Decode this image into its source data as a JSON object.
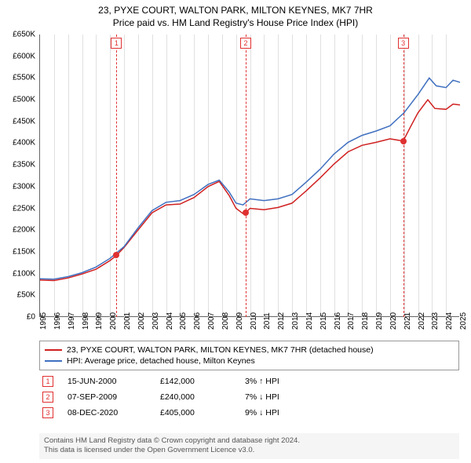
{
  "title": {
    "line1": "23, PYXE COURT, WALTON PARK, MILTON KEYNES, MK7 7HR",
    "line2": "Price paid vs. HM Land Registry's House Price Index (HPI)"
  },
  "chart": {
    "type": "line",
    "background_color": "#ffffff",
    "grid_color": "#e0e0e0",
    "axis_color": "#666666",
    "ylim": [
      0,
      650000
    ],
    "ytick_step": 50000,
    "ytick_prefix": "£",
    "ytick_suffix": "K",
    "xlim": [
      1995,
      2025
    ],
    "xtick_step": 1,
    "tick_fontsize": 10,
    "series": [
      {
        "name": "property",
        "color": "#d02020",
        "line_width": 1.5,
        "label": "23, PYXE COURT, WALTON PARK, MILTON KEYNES, MK7 7HR (detached house)",
        "points": [
          [
            1995.0,
            85000
          ],
          [
            1996.0,
            84000
          ],
          [
            1997.0,
            90000
          ],
          [
            1998.0,
            99000
          ],
          [
            1999.0,
            110000
          ],
          [
            2000.0,
            130000
          ],
          [
            2000.46,
            142000
          ],
          [
            2001.0,
            160000
          ],
          [
            2002.0,
            200000
          ],
          [
            2003.0,
            240000
          ],
          [
            2004.0,
            258000
          ],
          [
            2005.0,
            260000
          ],
          [
            2006.0,
            275000
          ],
          [
            2007.0,
            300000
          ],
          [
            2007.8,
            312000
          ],
          [
            2008.5,
            280000
          ],
          [
            2009.0,
            250000
          ],
          [
            2009.5,
            238000
          ],
          [
            2009.69,
            240000
          ],
          [
            2010.0,
            250000
          ],
          [
            2011.0,
            247000
          ],
          [
            2012.0,
            252000
          ],
          [
            2013.0,
            262000
          ],
          [
            2014.0,
            290000
          ],
          [
            2015.0,
            320000
          ],
          [
            2016.0,
            352000
          ],
          [
            2017.0,
            380000
          ],
          [
            2018.0,
            395000
          ],
          [
            2019.0,
            402000
          ],
          [
            2020.0,
            410000
          ],
          [
            2020.94,
            405000
          ],
          [
            2021.5,
            440000
          ],
          [
            2022.0,
            470000
          ],
          [
            2022.7,
            500000
          ],
          [
            2023.2,
            480000
          ],
          [
            2024.0,
            478000
          ],
          [
            2024.5,
            490000
          ],
          [
            2025.0,
            488000
          ]
        ]
      },
      {
        "name": "hpi",
        "color": "#4070c0",
        "line_width": 1.5,
        "label": "HPI: Average price, detached house, Milton Keynes",
        "points": [
          [
            1995.0,
            88000
          ],
          [
            1996.0,
            87000
          ],
          [
            1997.0,
            93000
          ],
          [
            1998.0,
            102000
          ],
          [
            1999.0,
            115000
          ],
          [
            2000.0,
            135000
          ],
          [
            2001.0,
            162000
          ],
          [
            2002.0,
            205000
          ],
          [
            2003.0,
            245000
          ],
          [
            2004.0,
            264000
          ],
          [
            2005.0,
            268000
          ],
          [
            2006.0,
            282000
          ],
          [
            2007.0,
            305000
          ],
          [
            2007.8,
            315000
          ],
          [
            2008.5,
            288000
          ],
          [
            2009.0,
            262000
          ],
          [
            2009.5,
            258000
          ],
          [
            2010.0,
            272000
          ],
          [
            2011.0,
            268000
          ],
          [
            2012.0,
            272000
          ],
          [
            2013.0,
            282000
          ],
          [
            2014.0,
            310000
          ],
          [
            2015.0,
            340000
          ],
          [
            2016.0,
            375000
          ],
          [
            2017.0,
            402000
          ],
          [
            2018.0,
            418000
          ],
          [
            2019.0,
            428000
          ],
          [
            2020.0,
            440000
          ],
          [
            2021.0,
            470000
          ],
          [
            2022.0,
            512000
          ],
          [
            2022.8,
            550000
          ],
          [
            2023.3,
            532000
          ],
          [
            2024.0,
            528000
          ],
          [
            2024.5,
            545000
          ],
          [
            2025.0,
            540000
          ]
        ]
      }
    ],
    "events": [
      {
        "n": "1",
        "year": 2000.46,
        "price_value": 142000,
        "date": "15-JUN-2000",
        "price": "£142,000",
        "hpi": "3% ↑ HPI"
      },
      {
        "n": "2",
        "year": 2009.69,
        "price_value": 240000,
        "date": "07-SEP-2009",
        "price": "£240,000",
        "hpi": "7% ↓ HPI"
      },
      {
        "n": "3",
        "year": 2020.94,
        "price_value": 405000,
        "date": "08-DEC-2020",
        "price": "£405,000",
        "hpi": "9% ↓ HPI"
      }
    ],
    "event_line_color": "#e03030",
    "event_box_border": "#e03030",
    "event_dot_color": "#e03030"
  },
  "footer": {
    "line1": "Contains HM Land Registry data © Crown copyright and database right 2024.",
    "line2": "This data is licensed under the Open Government Licence v3.0."
  }
}
